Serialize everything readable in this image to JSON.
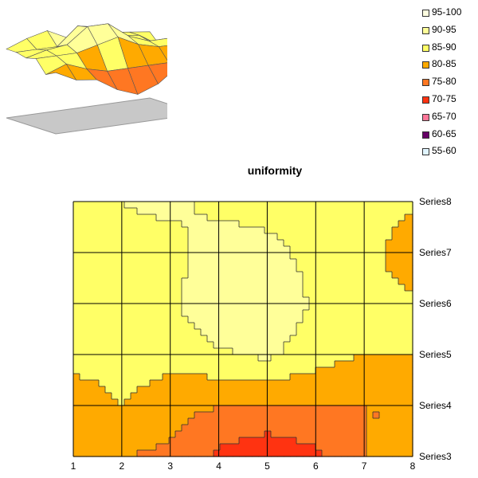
{
  "chart_data": {
    "type": "heatmap",
    "subtype": "contour",
    "title": "uniformity",
    "xlabel": "",
    "ylabel": "",
    "x": [
      1,
      2,
      3,
      4,
      5,
      6,
      7,
      8
    ],
    "series_names": [
      "Series3",
      "Series4",
      "Series5",
      "Series6",
      "Series7",
      "Series8"
    ],
    "grid": true,
    "legend_position": "top-right",
    "bands": [
      {
        "label": "95-100",
        "min": 95,
        "max": 100,
        "color": "#FFFFE0"
      },
      {
        "label": "90-95",
        "min": 90,
        "max": 95,
        "color": "#FFFF99"
      },
      {
        "label": "85-90",
        "min": 85,
        "max": 90,
        "color": "#FFFF66"
      },
      {
        "label": "80-85",
        "min": 80,
        "max": 85,
        "color": "#FFAA00"
      },
      {
        "label": "75-80",
        "min": 75,
        "max": 80,
        "color": "#FF7722"
      },
      {
        "label": "70-75",
        "min": 70,
        "max": 75,
        "color": "#FF3311"
      },
      {
        "label": "65-70",
        "min": 65,
        "max": 70,
        "color": "#FF7799"
      },
      {
        "label": "60-65",
        "min": 60,
        "max": 65,
        "color": "#660066"
      },
      {
        "label": "55-60",
        "min": 55,
        "max": 60,
        "color": "#E0F4FF"
      }
    ],
    "values": [
      [
        84,
        80,
        79,
        74,
        71,
        74,
        80,
        80
      ],
      [
        82,
        85,
        82,
        80,
        80,
        80,
        80,
        80
      ],
      [
        87,
        87,
        87,
        89,
        91,
        87,
        85,
        85
      ],
      [
        86,
        88,
        89,
        95,
        95,
        89,
        86,
        86
      ],
      [
        87,
        87,
        87,
        94,
        92,
        88,
        87,
        82
      ],
      [
        87,
        90,
        92,
        88,
        87,
        88,
        87,
        86
      ]
    ]
  }
}
